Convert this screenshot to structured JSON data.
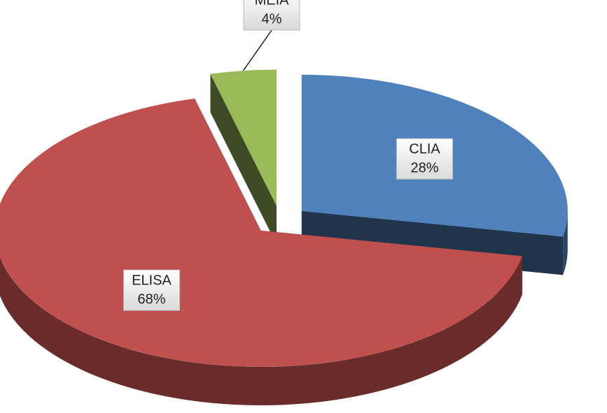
{
  "chart_data": {
    "type": "pie",
    "categories": [
      "CLIA",
      "ELISA",
      "MEIA"
    ],
    "values": [
      28,
      68,
      4
    ],
    "value_labels": [
      "28%",
      "68%",
      "4%"
    ],
    "colors": [
      "#4f81bd",
      "#c0504d",
      "#9bbb59"
    ]
  }
}
